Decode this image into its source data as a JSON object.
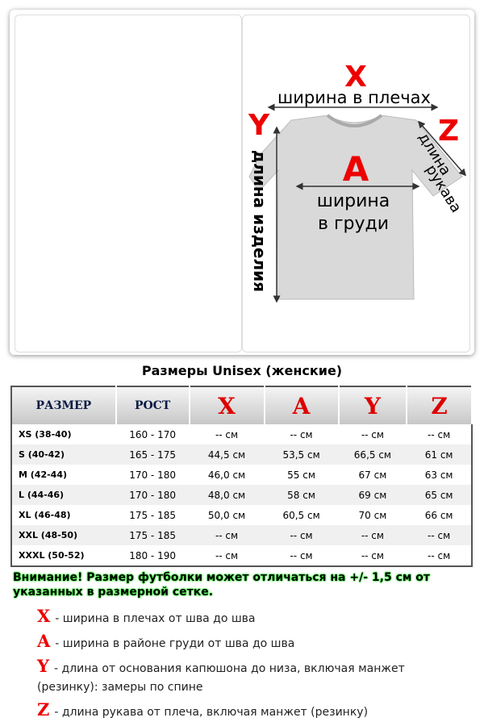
{
  "diagram": {
    "x_letter": "X",
    "x_label": "ширина в плечах",
    "y_letter": "Y",
    "y_label": "длина изделия",
    "a_letter": "A",
    "a_label_lines": [
      "ширина",
      "в груди"
    ],
    "z_letter": "Z",
    "z_label_lines": [
      "длина",
      "рукава"
    ]
  },
  "table": {
    "title": "Размеры Unisex (женские)",
    "headers": [
      "РАЗМЕР",
      "РОСТ",
      "X",
      "A",
      "Y",
      "Z"
    ],
    "rows": [
      [
        "XS (38-40)",
        "160 - 170",
        "--  см",
        "-- см",
        "-- см",
        "-- см"
      ],
      [
        "S (40-42)",
        "165 - 175",
        "44,5 см",
        "53,5 см",
        "66,5 см",
        "61 см"
      ],
      [
        "M (42-44)",
        "170 - 180",
        "46,0 см",
        "55 см",
        "67 см",
        "63 см"
      ],
      [
        "L (44-46)",
        "170 - 180",
        "48,0 см",
        "58 см",
        "69 см",
        "65 см"
      ],
      [
        "XL (46-48)",
        "175 - 185",
        "50,0 см",
        "60,5 см",
        "70 см",
        "66 см"
      ],
      [
        "XXL (48-50)",
        "175 - 185",
        "-- см",
        "-- см",
        "-- см",
        "-- см"
      ],
      [
        "XXXL (50-52)",
        "180 - 190",
        "-- см",
        "-- см",
        "-- см",
        "-- см"
      ]
    ]
  },
  "warning": "Внимание! Размер футболки может отличаться на +/- 1,5 см от указанных в размерной сетке.",
  "legend": [
    {
      "letter": "X",
      "text": "- ширина в плечах от шва до шва"
    },
    {
      "letter": "A",
      "text": "- ширина в районе груди от шва до шва"
    },
    {
      "letter": "Y",
      "text": "- длина от основания капюшона до низа, включая манжет (резинку): замеры по спине"
    },
    {
      "letter": "Z",
      "text": "- длина рукава от плеча, включая манжет (резинку)"
    }
  ]
}
